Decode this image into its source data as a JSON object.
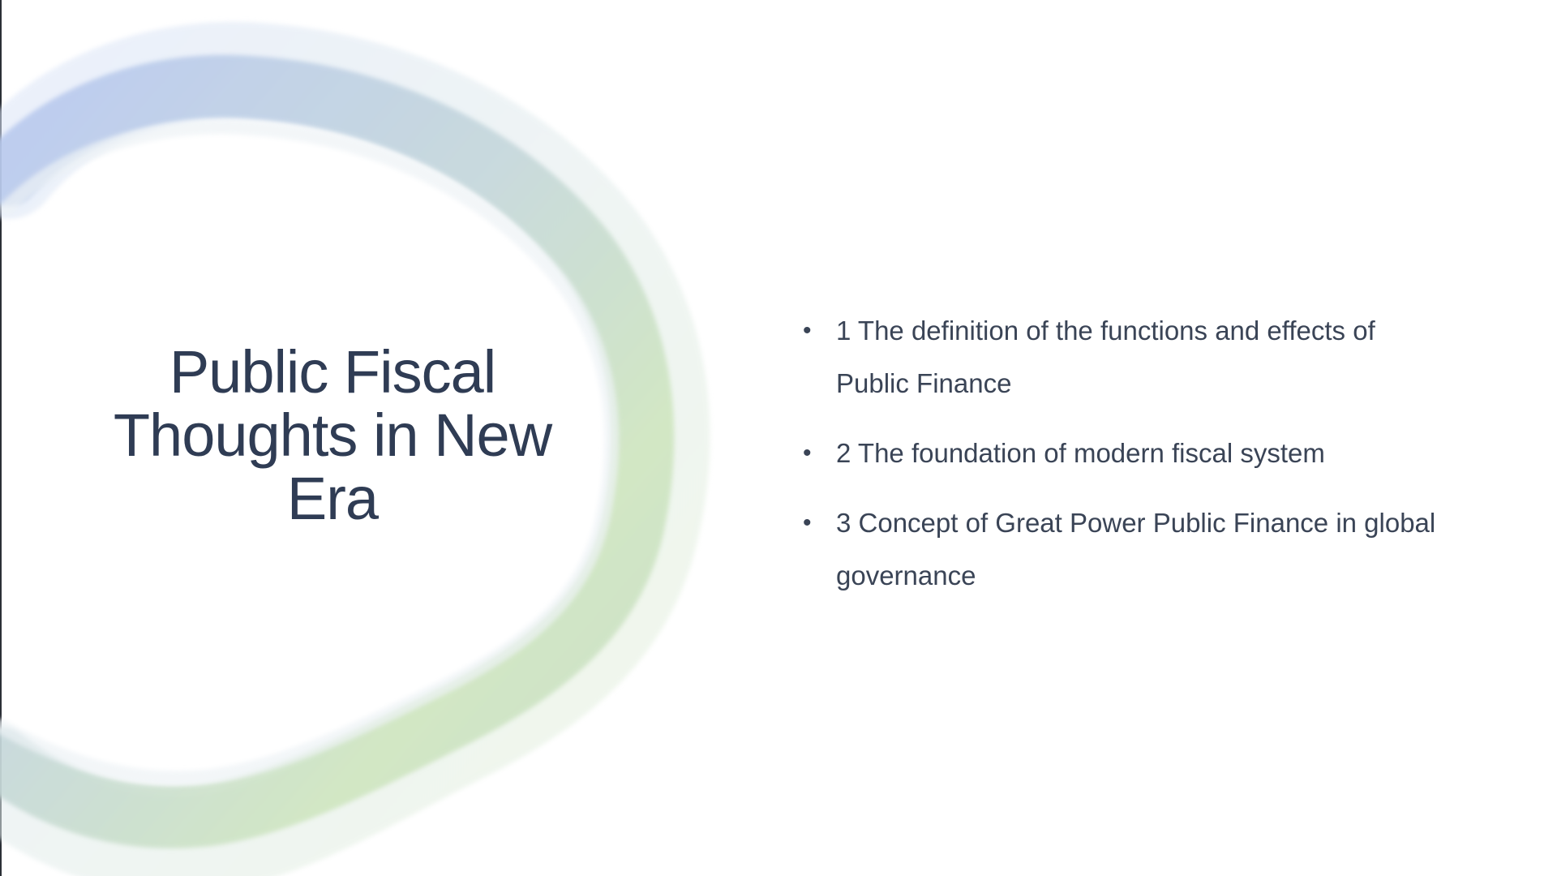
{
  "slide": {
    "title": "Public Fiscal Thoughts in New Era",
    "bullets": [
      "1 The definition of the functions and effects of Public Finance",
      "2 The foundation of modern fiscal system",
      "3 Concept of Great Power Public Finance in global governance"
    ]
  },
  "colors": {
    "title": "#2f3c54",
    "text": "#3a4456",
    "ring_blue": "#aebfe6",
    "ring_teal": "#bfd4d8",
    "ring_green": "#c9e3b6"
  }
}
